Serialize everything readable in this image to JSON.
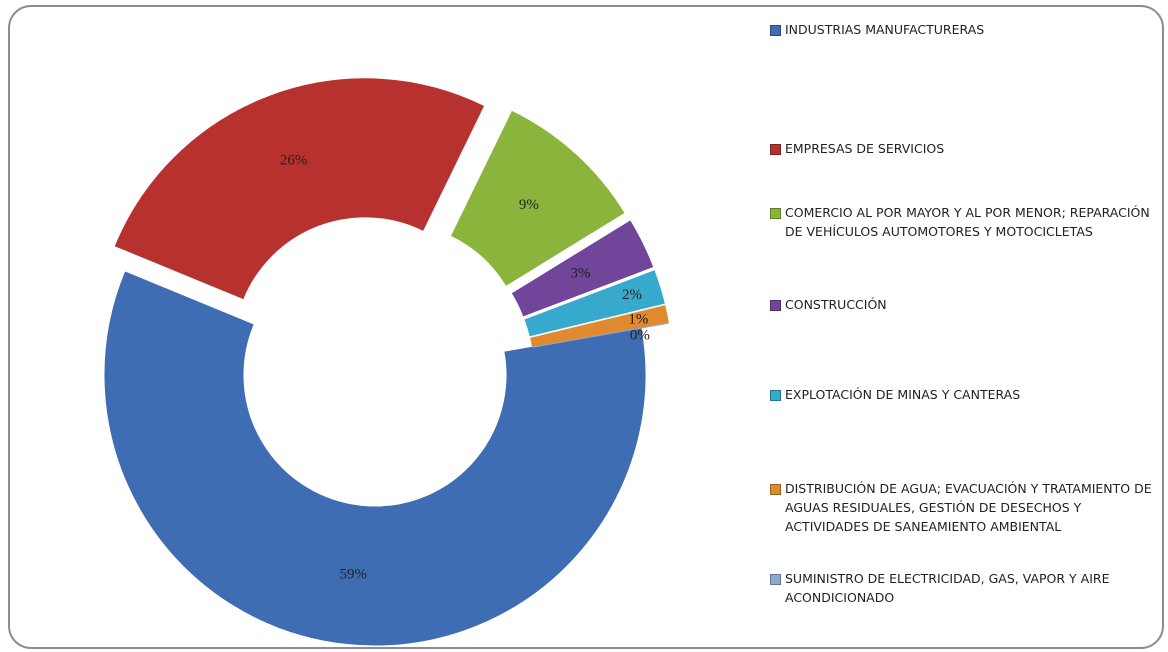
{
  "chart_data": {
    "type": "donut",
    "categories": [
      "INDUSTRIAS MANUFACTURERAS",
      "EMPRESAS DE SERVICIOS",
      "COMERCIO AL POR MAYOR Y AL POR MENOR; REPARACIÓN DE VEHÍCULOS AUTOMOTORES Y MOTOCICLETAS",
      "CONSTRUCCIÓN",
      "EXPLOTACIÓN DE MINAS Y CANTERAS",
      "DISTRIBUCIÓN DE AGUA; EVACUACIÓN Y TRATAMIENTO DE AGUAS RESIDUALES, GESTIÓN DE DESECHOS Y ACTIVIDADES DE SANEAMIENTO AMBIENTAL",
      "SUMINISTRO DE ELECTRICIDAD, GAS, VAPOR Y AIRE ACONDICIONADO"
    ],
    "values": [
      59,
      26,
      9,
      3,
      2,
      1,
      0
    ],
    "value_labels": [
      "59%",
      "26%",
      "9%",
      "3%",
      "2%",
      "1%",
      "0%"
    ],
    "colors": [
      "#3f6db3",
      "#b7322e",
      "#8bb43c",
      "#71459a",
      "#36a9cc",
      "#e08a30",
      "#8ea8d2"
    ],
    "legend": "right"
  }
}
